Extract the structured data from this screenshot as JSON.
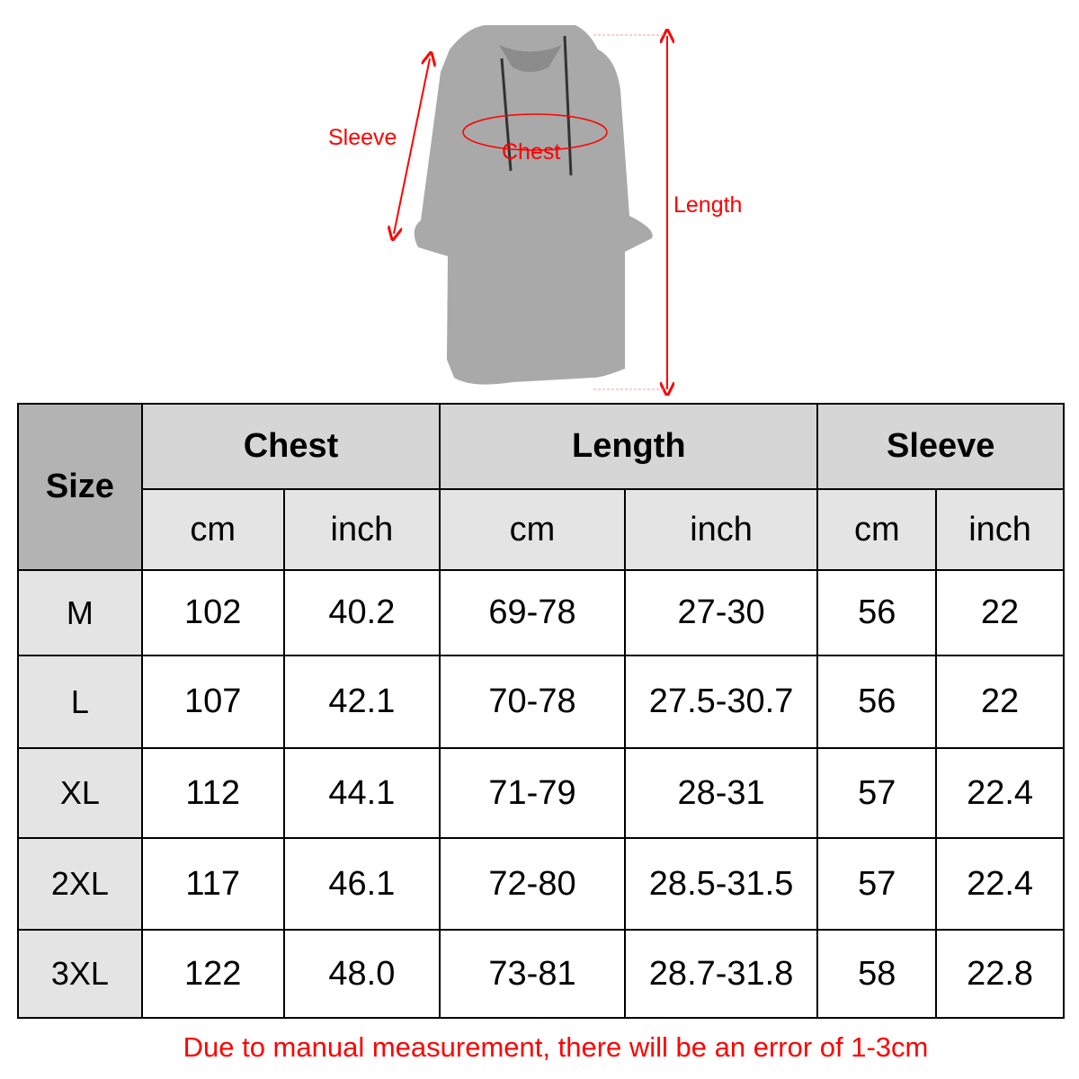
{
  "diagram": {
    "labels": {
      "sleeve": "Sleeve",
      "chest": "Chest",
      "length": "Length"
    },
    "colors": {
      "garment": "#a8a8a8",
      "annotation": "#ff0000"
    }
  },
  "table": {
    "size_header": "Size",
    "groups": [
      "Chest",
      "Length",
      "Sleeve"
    ],
    "units": [
      "cm",
      "inch",
      "cm",
      "inch",
      "cm",
      "inch"
    ],
    "rows": [
      {
        "size": "M",
        "values": [
          "102",
          "40.2",
          "69-78",
          "27-30",
          "56",
          "22"
        ]
      },
      {
        "size": "L",
        "values": [
          "107",
          "42.1",
          "70-78",
          "27.5-30.7",
          "56",
          "22"
        ]
      },
      {
        "size": "XL",
        "values": [
          "112",
          "44.1",
          "71-79",
          "28-31",
          "57",
          "22.4"
        ]
      },
      {
        "size": "2XL",
        "values": [
          "117",
          "46.1",
          "72-80",
          "28.5-31.5",
          "57",
          "22.4"
        ]
      },
      {
        "size": "3XL",
        "values": [
          "122",
          "48.0",
          "73-81",
          "28.7-31.8",
          "58",
          "22.8"
        ]
      }
    ]
  },
  "note": "Due to manual measurement, there will be an error of 1-3cm"
}
